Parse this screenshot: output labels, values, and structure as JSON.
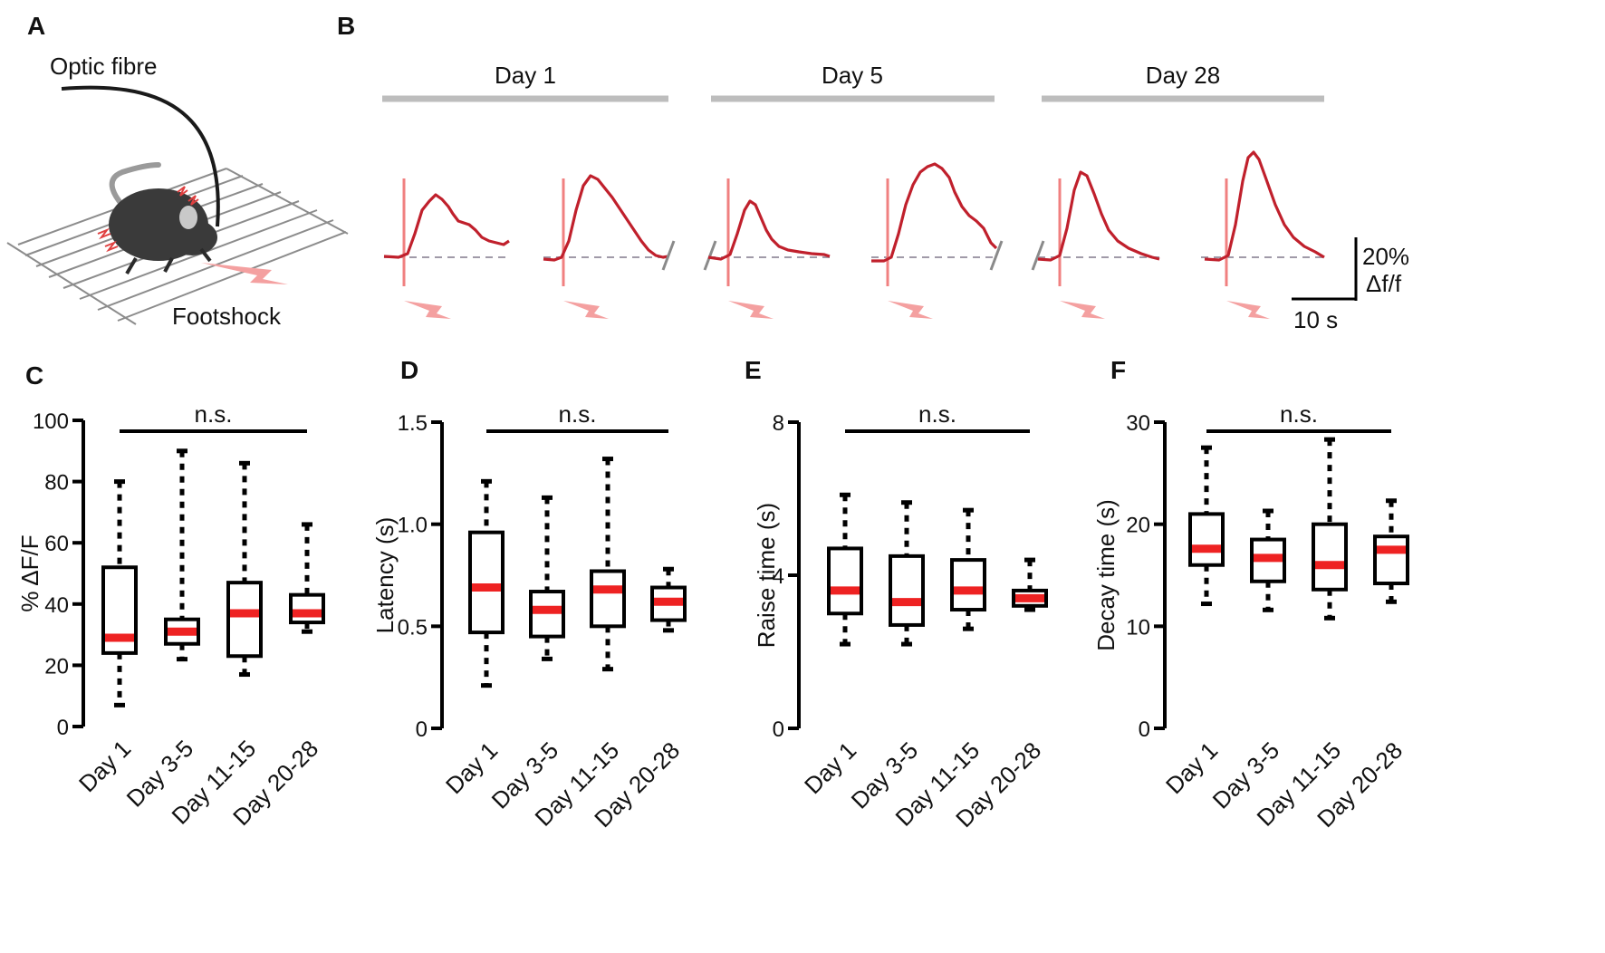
{
  "panel_labels": [
    "A",
    "B",
    "C",
    "D",
    "E",
    "F"
  ],
  "panel_a": {
    "fibre_label": "Optic fibre",
    "shock_label": "Footshock",
    "colors": {
      "mouse": "#3a3a3a",
      "fibre": "#1a1a1a",
      "shock": "#f4a0a0",
      "grid": "#8c8c8c"
    }
  },
  "panel_b": {
    "groups": [
      "Day 1",
      "Day 5",
      "Day 28"
    ],
    "scale_y": "20%",
    "scale_y_unit": "Δf/f",
    "scale_x": "10 s",
    "colors": {
      "trace": "#c0202c",
      "stim": "#f08080",
      "bar": "#bdbdbd",
      "baseline": "#a09aa8"
    }
  },
  "chart_data": [
    {
      "type": "box",
      "panel": "C",
      "title": "",
      "xlabel": "",
      "ylabel": "% ΔF/F",
      "ylim": [
        0,
        100
      ],
      "yticks": [
        "0",
        "20",
        "40",
        "60",
        "80",
        "100"
      ],
      "categories": [
        "Day 1",
        "Day 3-5",
        "Day 11-15",
        "Day 20-28"
      ],
      "series": [
        {
          "name": "Day 1",
          "min": 7,
          "q1": 24,
          "median": 29,
          "q3": 52,
          "max": 80
        },
        {
          "name": "Day 3-5",
          "min": 22,
          "q1": 27,
          "median": 31,
          "q3": 35,
          "max": 90
        },
        {
          "name": "Day 11-15",
          "min": 17,
          "q1": 23,
          "median": 37,
          "q3": 47,
          "max": 86
        },
        {
          "name": "Day 20-28",
          "min": 31,
          "q1": 34,
          "median": 37,
          "q3": 43,
          "max": 66
        }
      ],
      "significance": "n.s."
    },
    {
      "type": "box",
      "panel": "D",
      "title": "",
      "xlabel": "",
      "ylabel": "Latency (s)",
      "ylim": [
        0,
        1.5
      ],
      "yticks": [
        "0",
        "0.5",
        "1.0",
        "1.5"
      ],
      "categories": [
        "Day 1",
        "Day 3-5",
        "Day 11-15",
        "Day 20-28"
      ],
      "series": [
        {
          "name": "Day 1",
          "min": 0.21,
          "q1": 0.47,
          "median": 0.69,
          "q3": 0.96,
          "max": 1.21
        },
        {
          "name": "Day 3-5",
          "min": 0.34,
          "q1": 0.45,
          "median": 0.58,
          "q3": 0.67,
          "max": 1.13
        },
        {
          "name": "Day 11-15",
          "min": 0.29,
          "q1": 0.5,
          "median": 0.68,
          "q3": 0.77,
          "max": 1.32
        },
        {
          "name": "Day 20-28",
          "min": 0.48,
          "q1": 0.53,
          "median": 0.62,
          "q3": 0.69,
          "max": 0.78
        }
      ],
      "significance": "n.s."
    },
    {
      "type": "box",
      "panel": "E",
      "title": "",
      "xlabel": "",
      "ylabel": "Raise time (s)",
      "ylim": [
        0,
        8
      ],
      "yticks": [
        "0",
        "4",
        "8"
      ],
      "categories": [
        "Day 1",
        "Day 3-5",
        "Day 11-15",
        "Day 20-28"
      ],
      "series": [
        {
          "name": "Day 1",
          "min": 2.2,
          "q1": 3.0,
          "median": 3.6,
          "q3": 4.7,
          "max": 6.1
        },
        {
          "name": "Day 3-5",
          "min": 2.2,
          "q1": 2.7,
          "median": 3.3,
          "q3": 4.5,
          "max": 5.9
        },
        {
          "name": "Day 11-15",
          "min": 2.6,
          "q1": 3.1,
          "median": 3.6,
          "q3": 4.4,
          "max": 5.7
        },
        {
          "name": "Day 20-28",
          "min": 3.1,
          "q1": 3.2,
          "median": 3.4,
          "q3": 3.6,
          "max": 4.4
        }
      ],
      "significance": "n.s."
    },
    {
      "type": "box",
      "panel": "F",
      "title": "",
      "xlabel": "",
      "ylabel": "Decay time (s)",
      "ylim": [
        0,
        30
      ],
      "yticks": [
        "0",
        "10",
        "20",
        "30"
      ],
      "categories": [
        "Day 1",
        "Day 3-5",
        "Day 11-15",
        "Day 20-28"
      ],
      "series": [
        {
          "name": "Day 1",
          "min": 12.2,
          "q1": 16.0,
          "median": 17.6,
          "q3": 21.0,
          "max": 27.5
        },
        {
          "name": "Day 3-5",
          "min": 11.6,
          "q1": 14.4,
          "median": 16.7,
          "q3": 18.5,
          "max": 21.3
        },
        {
          "name": "Day 11-15",
          "min": 10.8,
          "q1": 13.6,
          "median": 16.0,
          "q3": 20.0,
          "max": 28.3
        },
        {
          "name": "Day 20-28",
          "min": 12.4,
          "q1": 14.2,
          "median": 17.5,
          "q3": 18.8,
          "max": 22.3
        }
      ],
      "significance": "n.s."
    }
  ]
}
